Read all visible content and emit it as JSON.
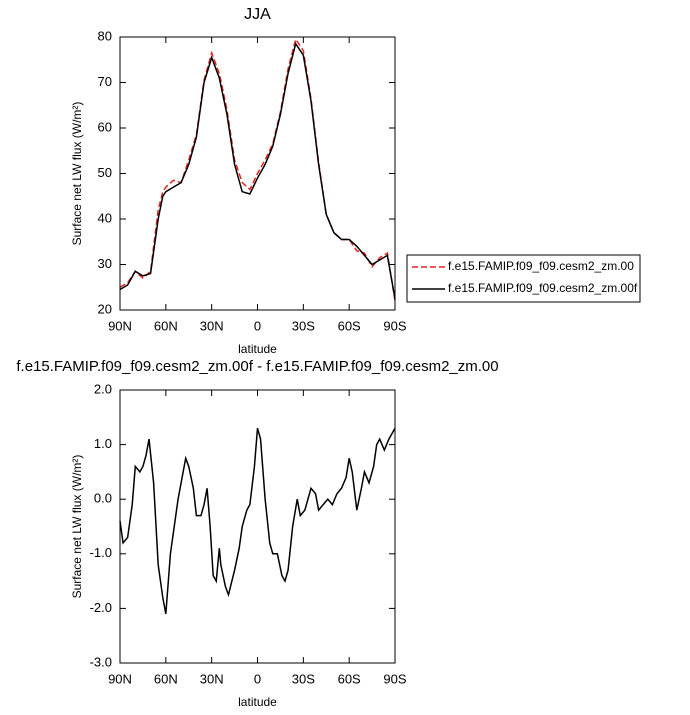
{
  "chart_data": [
    {
      "type": "line",
      "title": "JJA",
      "xlabel": "latitude",
      "ylabel": "Surface net LW flux (W/m²)",
      "x": [
        90,
        85,
        80,
        75,
        70,
        65,
        62,
        60,
        55,
        50,
        45,
        40,
        35,
        30,
        25,
        20,
        15,
        10,
        5,
        0,
        -5,
        -10,
        -15,
        -20,
        -25,
        -30,
        -35,
        -40,
        -45,
        -50,
        -55,
        -60,
        -65,
        -70,
        -75,
        -80,
        -85,
        -90
      ],
      "series": [
        {
          "name": "f.e15.FAMIP.f09_f09.cesm2_zm.00",
          "color": "#e8241f",
          "linestyle": "dashed",
          "values": [
            25,
            26,
            28.5,
            27,
            28.5,
            42,
            46,
            47,
            48.5,
            48,
            53,
            58.5,
            70.5,
            76.5,
            72,
            64,
            53,
            48,
            46.5,
            50,
            53,
            56.5,
            63.5,
            73,
            79.5,
            77,
            66.5,
            52.5,
            41,
            37,
            35.5,
            35.5,
            33,
            32.5,
            29.5,
            31.5,
            32.5,
            22
          ]
        },
        {
          "name": "f.e15.FAMIP.f09_f09.cesm2_zm.00f",
          "color": "#000000",
          "linestyle": "solid",
          "values": [
            24.5,
            25.5,
            28.5,
            27.5,
            28,
            40,
            45,
            46,
            47,
            48,
            52,
            58,
            70,
            75.5,
            71,
            63,
            52,
            46,
            45.5,
            49,
            52,
            56,
            63,
            72,
            78.5,
            76,
            66,
            52,
            41,
            37,
            35.5,
            35.5,
            34,
            32,
            30,
            31,
            32,
            22.5
          ]
        }
      ],
      "xlim": [
        90,
        -90
      ],
      "xticks": [
        {
          "value": 90,
          "label": "90N"
        },
        {
          "value": 60,
          "label": "60N"
        },
        {
          "value": 30,
          "label": "30N"
        },
        0,
        {
          "value": -30,
          "label": "30S"
        },
        {
          "value": -60,
          "label": "60S"
        },
        {
          "value": -90,
          "label": "90S"
        }
      ],
      "ylim": [
        20,
        80
      ],
      "yticks": [
        20,
        30,
        40,
        50,
        60,
        70,
        80
      ],
      "legend": "right"
    },
    {
      "type": "line",
      "title": "f.e15.FAMIP.f09_f09.cesm2_zm.00f - f.e15.FAMIP.f09_f09.cesm2_zm.00",
      "xlabel": "latitude",
      "ylabel": "Surface net LW flux (W/m²)",
      "x": [
        90,
        88,
        85,
        82,
        80,
        77,
        75,
        73,
        71,
        68,
        65,
        62,
        60,
        57,
        55,
        52,
        50,
        47,
        45,
        42,
        40,
        37,
        35,
        33,
        31,
        29,
        27,
        25,
        24,
        21,
        19,
        15,
        12,
        10,
        7,
        5,
        2,
        0,
        -2,
        -5,
        -8,
        -10,
        -13,
        -16,
        -18,
        -20,
        -23,
        -26,
        -28,
        -31,
        -33,
        -35,
        -38,
        -40,
        -43,
        -46,
        -49,
        -52,
        -55,
        -58,
        -60,
        -62,
        -65,
        -68,
        -70,
        -73,
        -76,
        -78,
        -80,
        -83,
        -86,
        -90
      ],
      "series": [
        {
          "color": "#000000",
          "linestyle": "solid",
          "values": [
            -0.4,
            -0.8,
            -0.7,
            -0.1,
            0.6,
            0.5,
            0.6,
            0.8,
            1.1,
            0.3,
            -1.2,
            -1.8,
            -2.1,
            -1.0,
            -0.6,
            0.0,
            0.3,
            0.75,
            0.6,
            0.2,
            -0.3,
            -0.3,
            -0.1,
            0.2,
            -0.5,
            -1.4,
            -1.5,
            -0.9,
            -1.2,
            -1.6,
            -1.75,
            -1.3,
            -0.9,
            -0.5,
            -0.2,
            -0.1,
            0.6,
            1.3,
            1.1,
            0.0,
            -0.8,
            -1.0,
            -1.0,
            -1.4,
            -1.5,
            -1.3,
            -0.5,
            0.0,
            -0.3,
            -0.2,
            0.0,
            0.2,
            0.1,
            -0.2,
            -0.1,
            0.0,
            -0.1,
            0.1,
            0.2,
            0.4,
            0.75,
            0.5,
            -0.2,
            0.2,
            0.5,
            0.3,
            0.6,
            1.0,
            1.1,
            0.9,
            1.1,
            1.3
          ]
        }
      ],
      "xlim": [
        90,
        -90
      ],
      "xticks": [
        {
          "value": 90,
          "label": "90N"
        },
        {
          "value": 60,
          "label": "60N"
        },
        {
          "value": 30,
          "label": "30N"
        },
        0,
        {
          "value": -30,
          "label": "30S"
        },
        {
          "value": -60,
          "label": "60S"
        },
        {
          "value": -90,
          "label": "90S"
        }
      ],
      "ylim": [
        -3,
        2
      ],
      "yticks": [
        {
          "value": -3,
          "label": "-3.0"
        },
        {
          "value": -2,
          "label": "-2.0"
        },
        {
          "value": -1,
          "label": "-1.0"
        },
        {
          "value": 0,
          "label": "0.0"
        },
        {
          "value": 1,
          "label": "1.0"
        },
        {
          "value": 2,
          "label": "2.0"
        }
      ]
    }
  ]
}
